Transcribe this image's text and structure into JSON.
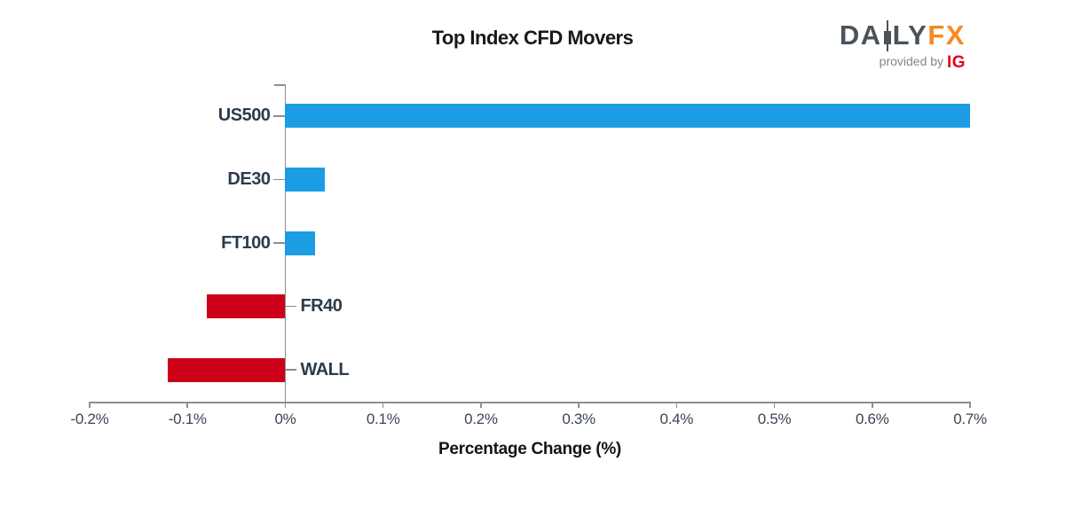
{
  "header": {
    "logo": {
      "part1": "DA",
      "part2": "LY",
      "part3": "FX",
      "provided_by": "provided by",
      "ig": "IG",
      "icon": "candlestick-icon",
      "colors": {
        "slate": "#4A525C",
        "orange": "#F68A1E",
        "ig_red": "#E8001F",
        "gray": "#7E8691"
      }
    }
  },
  "chart_data": {
    "type": "bar",
    "orientation": "horizontal",
    "title": "Top Index CFD Movers",
    "categories": [
      "US500",
      "DE30",
      "FT100",
      "FR40",
      "WALL"
    ],
    "values": [
      0.7,
      0.04,
      0.03,
      -0.08,
      -0.12
    ],
    "value_unit": "%",
    "xlabel": "Percentage Change (%)",
    "xlim": [
      -0.2,
      0.7
    ],
    "x_ticks": [
      {
        "value": -0.2,
        "label": "-0.2%"
      },
      {
        "value": -0.1,
        "label": "-0.1%"
      },
      {
        "value": 0,
        "label": "0%"
      },
      {
        "value": 0.1,
        "label": "0.1%"
      },
      {
        "value": 0.2,
        "label": "0.2%"
      },
      {
        "value": 0.3,
        "label": "0.3%"
      },
      {
        "value": 0.4,
        "label": "0.4%"
      },
      {
        "value": 0.5,
        "label": "0.5%"
      },
      {
        "value": 0.6,
        "label": "0.6%"
      },
      {
        "value": 0.7,
        "label": "0.7%"
      }
    ],
    "grid": false,
    "legend": null,
    "colors": {
      "positive_bar": "#1B9DE3",
      "negative_bar": "#CC0019",
      "axis": "#8E8E8E",
      "tick_label": "#3A4557",
      "category_label": "#2D3A4D"
    }
  }
}
